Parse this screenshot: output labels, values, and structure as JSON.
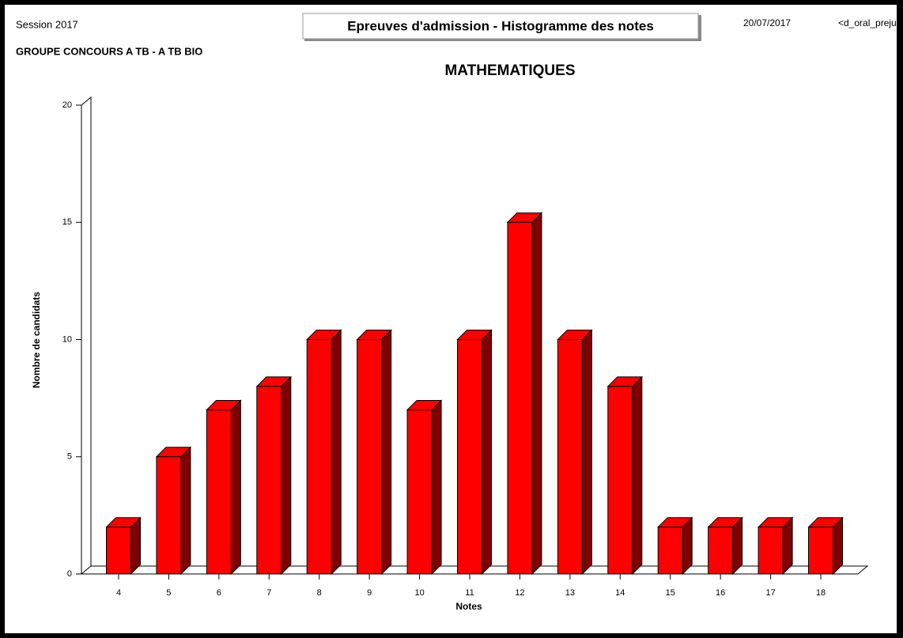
{
  "header": {
    "session": "Session 2017",
    "group": "GROUPE CONCOURS A TB - A TB BIO",
    "title": "Epreuves d'admission - Histogramme des notes",
    "date": "20/07/2017",
    "report": "<d_oral_preju"
  },
  "chart_data": {
    "type": "bar",
    "title": "MATHEMATIQUES",
    "x_label": "Notes",
    "y_label": "Nombre de candidats",
    "categories": [
      "4",
      "5",
      "6",
      "7",
      "8",
      "9",
      "10",
      "11",
      "12",
      "13",
      "14",
      "15",
      "16",
      "17",
      "18"
    ],
    "values": [
      2,
      5,
      7,
      8,
      10,
      10,
      7,
      10,
      15,
      10,
      8,
      2,
      2,
      2,
      2
    ],
    "color": "#ff0000",
    "side_color": "#800000",
    "ylim": [
      0,
      20
    ],
    "yticks": [
      0,
      5,
      10,
      15,
      20
    ]
  }
}
